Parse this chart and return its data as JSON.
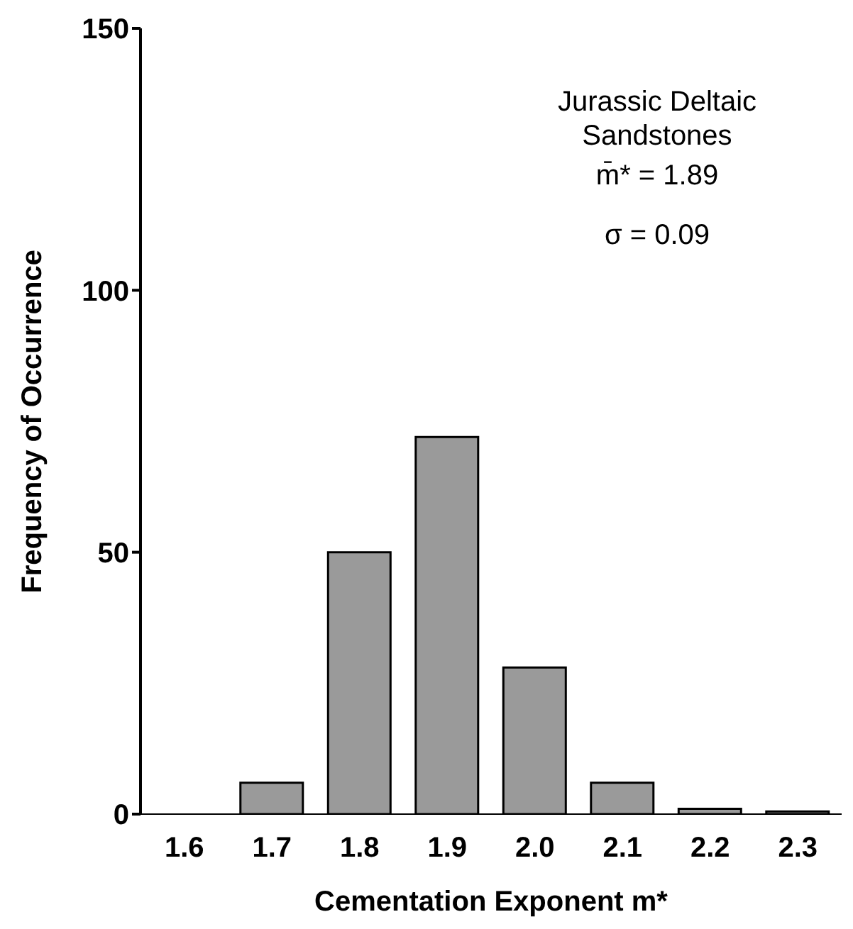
{
  "chart_data": {
    "type": "bar",
    "xlabel": "Cementation Exponent m*",
    "ylabel": "Frequency of Occurrence",
    "annotations": [
      "Jurassic Deltaic Sandstones",
      "m̄* = 1.89",
      "σ = 0.09"
    ],
    "categories": [
      "1.6",
      "1.7",
      "1.8",
      "1.9",
      "2.0",
      "2.1",
      "2.2",
      "2.3"
    ],
    "values": [
      0,
      6,
      50,
      72,
      28,
      6,
      1,
      0.5
    ],
    "color": "#9a9a9a",
    "ylim": [
      0,
      150
    ],
    "yticks": [
      0,
      50,
      100,
      150
    ],
    "grid": false,
    "legend": false
  }
}
